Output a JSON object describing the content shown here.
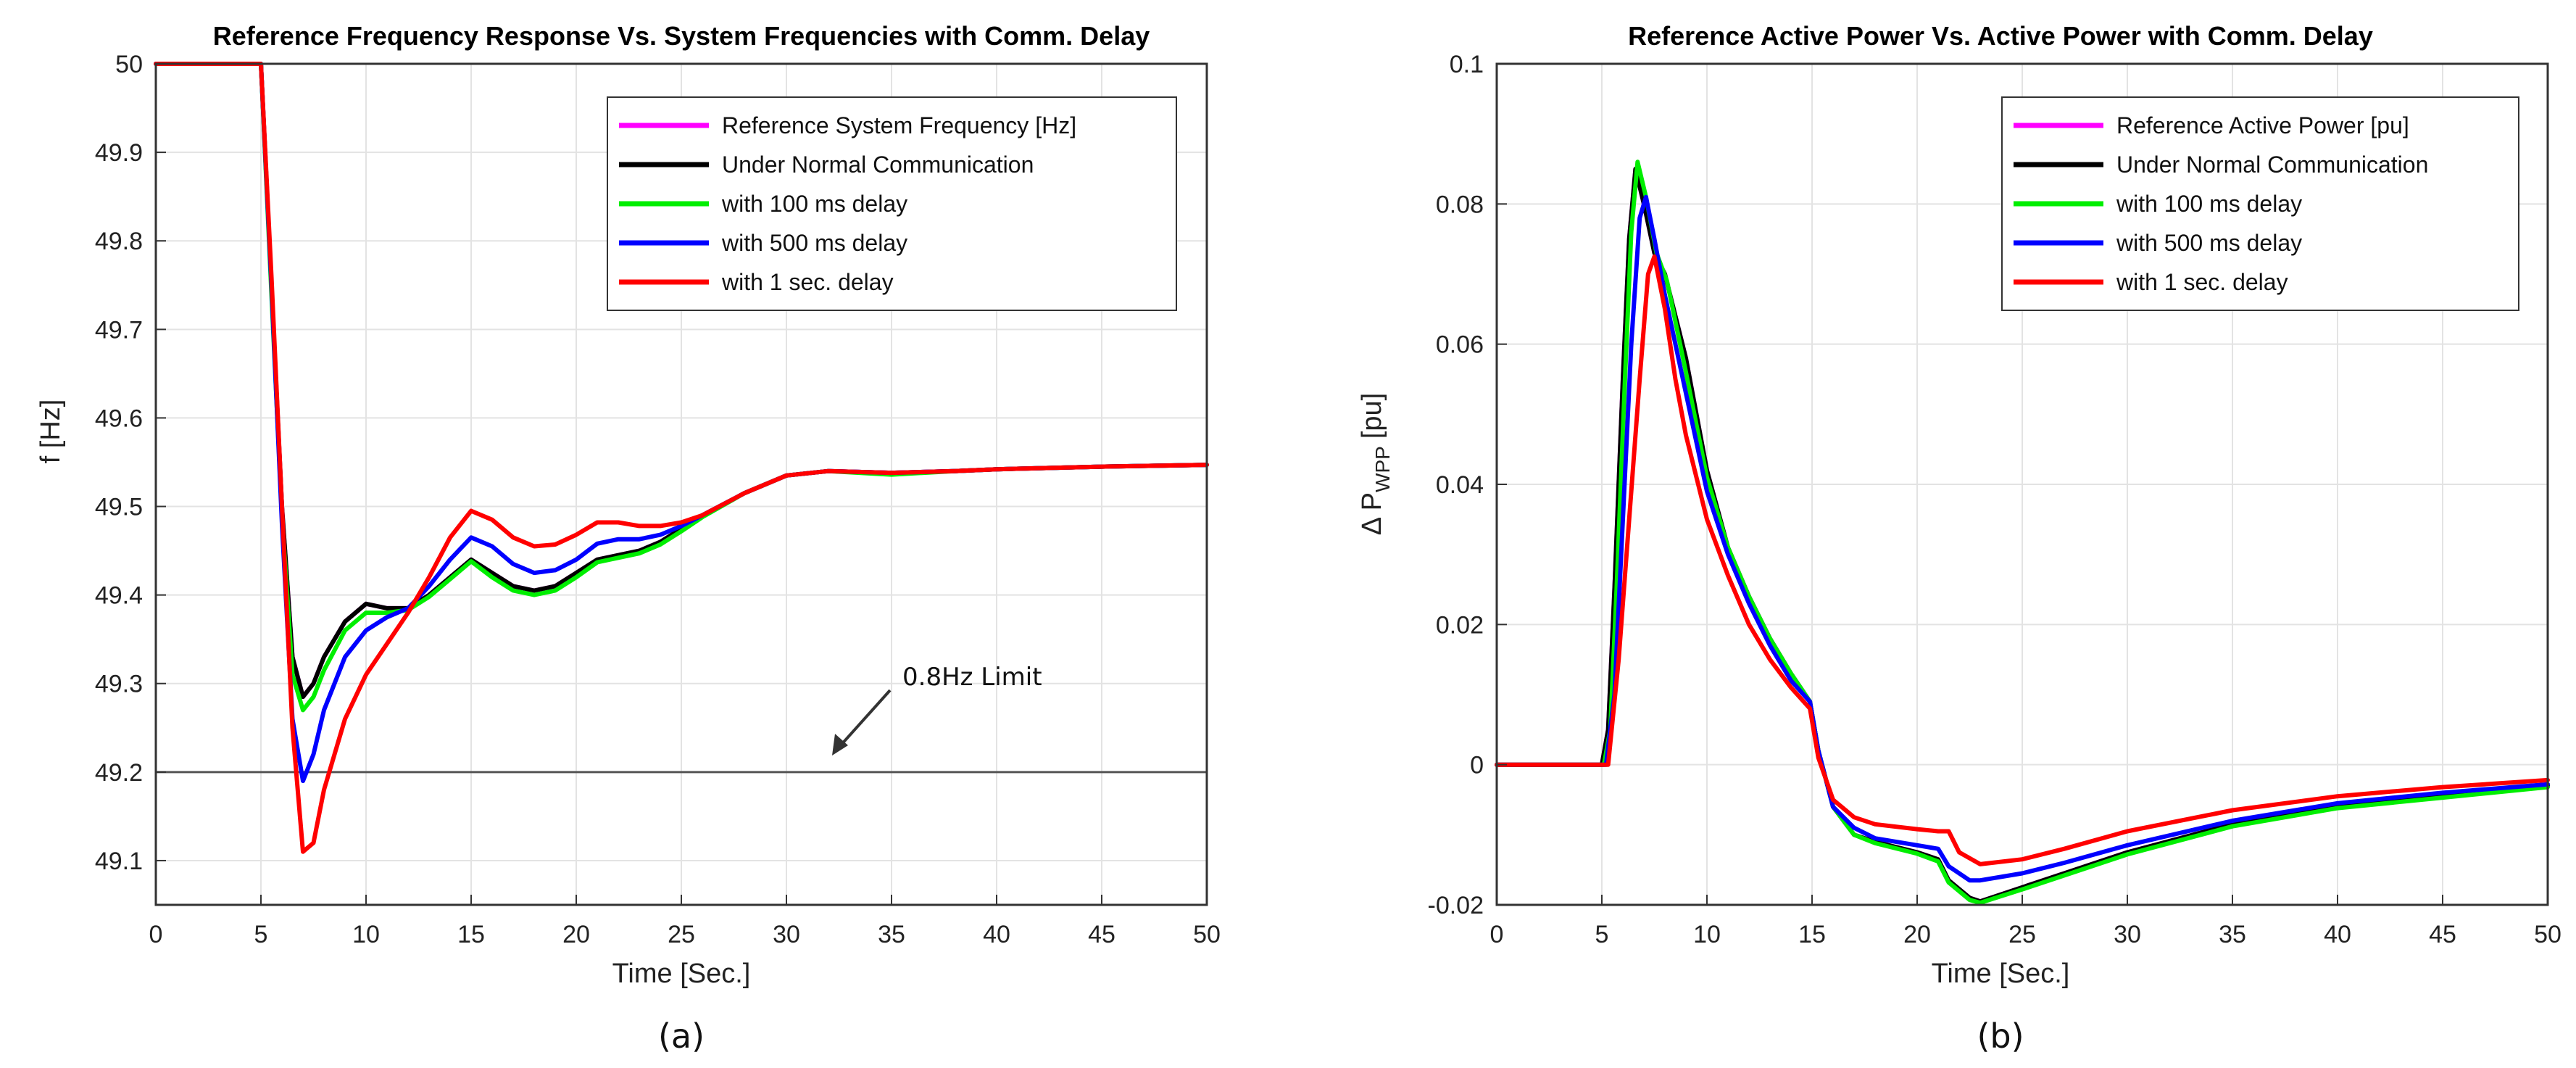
{
  "chart_data": [
    {
      "type": "line",
      "caption": "(a)",
      "title": "Reference Frequency Response Vs. System Frequencies with Comm. Delay",
      "xlabel": "Time [Sec.]",
      "ylabel": "f [Hz]",
      "xlim": [
        0,
        50
      ],
      "ylim": [
        49.05,
        50
      ],
      "xticks": [
        0,
        5,
        10,
        15,
        20,
        25,
        30,
        35,
        40,
        45,
        50
      ],
      "yticks": [
        49.1,
        49.2,
        49.3,
        49.4,
        49.5,
        49.6,
        49.7,
        49.8,
        49.9,
        50
      ],
      "ytick_labels": [
        "49.1",
        "49.2",
        "49.3",
        "49.4",
        "49.5",
        "49.6",
        "49.7",
        "49.8",
        "49.9",
        "50"
      ],
      "grid": true,
      "legend_position": "top-right",
      "annotation": {
        "text": "0.8Hz Limit",
        "target_x": 32.5,
        "target_y": 49.2
      },
      "hline": {
        "y": 49.2,
        "color": "#555555"
      },
      "series": [
        {
          "name": "Reference System Frequency [Hz]",
          "color": "#ff00ff",
          "x": [
            0,
            5,
            5.5,
            6,
            6.5,
            7,
            7.5,
            8,
            9,
            10,
            11,
            12,
            13,
            14,
            15,
            16,
            17,
            18,
            19,
            20,
            21,
            22,
            23,
            24,
            25,
            26,
            28,
            30,
            32,
            35,
            38,
            40,
            45,
            50
          ],
          "y": [
            50,
            50,
            49.75,
            49.5,
            49.33,
            49.285,
            49.3,
            49.33,
            49.37,
            49.39,
            49.385,
            49.385,
            49.4,
            49.42,
            49.44,
            49.425,
            49.41,
            49.405,
            49.41,
            49.425,
            49.44,
            49.445,
            49.45,
            49.46,
            49.475,
            49.49,
            49.515,
            49.535,
            49.54,
            49.538,
            49.54,
            49.542,
            49.545,
            49.547
          ]
        },
        {
          "name": "Under Normal Communication",
          "color": "#000000",
          "x": [
            0,
            5,
            5.5,
            6,
            6.5,
            7,
            7.5,
            8,
            9,
            10,
            11,
            12,
            13,
            14,
            15,
            16,
            17,
            18,
            19,
            20,
            21,
            22,
            23,
            24,
            25,
            26,
            28,
            30,
            32,
            35,
            38,
            40,
            45,
            50
          ],
          "y": [
            50,
            50,
            49.75,
            49.5,
            49.33,
            49.285,
            49.3,
            49.33,
            49.37,
            49.39,
            49.385,
            49.385,
            49.4,
            49.42,
            49.44,
            49.425,
            49.41,
            49.405,
            49.41,
            49.425,
            49.44,
            49.445,
            49.45,
            49.46,
            49.475,
            49.49,
            49.515,
            49.535,
            49.54,
            49.538,
            49.54,
            49.542,
            49.545,
            49.547
          ]
        },
        {
          "name": "with 100 ms delay",
          "color": "#00ee00",
          "x": [
            0,
            5,
            5.5,
            6,
            6.5,
            7,
            7.5,
            8,
            9,
            10,
            11,
            12,
            13,
            14,
            15,
            16,
            17,
            18,
            19,
            20,
            21,
            22,
            23,
            24,
            25,
            26,
            28,
            30,
            32,
            35,
            38,
            40,
            45,
            50
          ],
          "y": [
            50,
            50,
            49.74,
            49.49,
            49.31,
            49.27,
            49.285,
            49.315,
            49.36,
            49.38,
            49.38,
            49.383,
            49.398,
            49.418,
            49.438,
            49.42,
            49.405,
            49.4,
            49.405,
            49.42,
            49.437,
            49.442,
            49.447,
            49.457,
            49.472,
            49.488,
            49.515,
            49.535,
            49.54,
            49.536,
            49.54,
            49.542,
            49.545,
            49.547
          ]
        },
        {
          "name": "with 500 ms delay",
          "color": "#0000ff",
          "x": [
            0,
            5,
            5.5,
            6,
            6.5,
            7,
            7.5,
            8,
            9,
            10,
            11,
            12,
            13,
            14,
            15,
            16,
            17,
            18,
            19,
            20,
            21,
            22,
            23,
            24,
            25,
            26,
            28,
            30,
            32,
            35,
            38,
            40,
            45,
            50
          ],
          "y": [
            50,
            50,
            49.75,
            49.48,
            49.26,
            49.19,
            49.22,
            49.27,
            49.33,
            49.36,
            49.375,
            49.385,
            49.41,
            49.44,
            49.465,
            49.455,
            49.435,
            49.425,
            49.428,
            49.44,
            49.458,
            49.463,
            49.463,
            49.468,
            49.478,
            49.49,
            49.515,
            49.535,
            49.54,
            49.538,
            49.54,
            49.542,
            49.545,
            49.547
          ]
        },
        {
          "name": "with 1 sec. delay",
          "color": "#ff0000",
          "x": [
            0,
            5,
            5.5,
            6,
            6.5,
            7,
            7.5,
            8,
            9,
            10,
            11,
            12,
            13,
            14,
            15,
            16,
            17,
            18,
            19,
            20,
            21,
            22,
            23,
            24,
            25,
            26,
            28,
            30,
            32,
            35,
            38,
            40,
            45,
            50
          ],
          "y": [
            50,
            50,
            49.76,
            49.5,
            49.25,
            49.11,
            49.12,
            49.18,
            49.26,
            49.31,
            49.345,
            49.38,
            49.42,
            49.465,
            49.495,
            49.485,
            49.465,
            49.455,
            49.457,
            49.468,
            49.482,
            49.482,
            49.478,
            49.478,
            49.482,
            49.49,
            49.515,
            49.535,
            49.54,
            49.538,
            49.54,
            49.542,
            49.545,
            49.547
          ]
        }
      ]
    },
    {
      "type": "line",
      "caption": "(b)",
      "title": "Reference Active Power Vs. Active Power with Comm. Delay",
      "xlabel": "Time [Sec.]",
      "ylabel": "Δ P",
      "ylabel_sub": "WPP",
      "ylabel_tail": "[pu]",
      "xlim": [
        0,
        50
      ],
      "ylim": [
        -0.02,
        0.1
      ],
      "xticks": [
        0,
        5,
        10,
        15,
        20,
        25,
        30,
        35,
        40,
        45,
        50
      ],
      "yticks": [
        -0.02,
        0,
        0.02,
        0.04,
        0.06,
        0.08,
        0.1
      ],
      "ytick_labels": [
        "-0.02",
        "0",
        "0.02",
        "0.04",
        "0.06",
        "0.08",
        "0.1"
      ],
      "grid": true,
      "legend_position": "top-right",
      "series": [
        {
          "name": "Reference Active Power [pu]",
          "color": "#ff00ff",
          "x": [
            0,
            5,
            5.3,
            5.6,
            6,
            6.3,
            6.6,
            7,
            7.5,
            8,
            9,
            10,
            11,
            12,
            13,
            14,
            14.9,
            15.3,
            16,
            17,
            18,
            20,
            21,
            21.5,
            22.5,
            23,
            25,
            27,
            30,
            35,
            40,
            45,
            50
          ],
          "y": [
            0,
            0,
            0.005,
            0.025,
            0.055,
            0.075,
            0.085,
            0.08,
            0.073,
            0.07,
            0.058,
            0.042,
            0.031,
            0.024,
            0.018,
            0.013,
            0.009,
            0.002,
            -0.006,
            -0.01,
            -0.011,
            -0.0125,
            -0.0135,
            -0.0165,
            -0.019,
            -0.0195,
            -0.0175,
            -0.0155,
            -0.0125,
            -0.0085,
            -0.006,
            -0.0045,
            -0.003
          ]
        },
        {
          "name": "Under Normal Communication",
          "color": "#000000",
          "x": [
            0,
            5,
            5.3,
            5.6,
            6,
            6.3,
            6.6,
            7,
            7.5,
            8,
            9,
            10,
            11,
            12,
            13,
            14,
            14.9,
            15.3,
            16,
            17,
            18,
            20,
            21,
            21.5,
            22.5,
            23,
            25,
            27,
            30,
            35,
            40,
            45,
            50
          ],
          "y": [
            0,
            0,
            0.005,
            0.025,
            0.055,
            0.075,
            0.085,
            0.08,
            0.073,
            0.07,
            0.058,
            0.042,
            0.031,
            0.024,
            0.018,
            0.013,
            0.009,
            0.002,
            -0.006,
            -0.01,
            -0.011,
            -0.0125,
            -0.0135,
            -0.0165,
            -0.019,
            -0.0195,
            -0.0175,
            -0.0155,
            -0.0125,
            -0.0085,
            -0.006,
            -0.0045,
            -0.003
          ]
        },
        {
          "name": "with 100 ms delay",
          "color": "#00ee00",
          "x": [
            0,
            5.1,
            5.4,
            5.7,
            6.1,
            6.4,
            6.7,
            7.1,
            7.6,
            8.1,
            9,
            10,
            11,
            12,
            13,
            14,
            14.9,
            15.3,
            16,
            17,
            18,
            20,
            21,
            21.5,
            22.5,
            23,
            25,
            27,
            30,
            35,
            40,
            45,
            50
          ],
          "y": [
            0,
            0,
            0.005,
            0.025,
            0.055,
            0.076,
            0.086,
            0.081,
            0.073,
            0.069,
            0.056,
            0.041,
            0.031,
            0.024,
            0.018,
            0.013,
            0.009,
            0.002,
            -0.006,
            -0.01,
            -0.0112,
            -0.0127,
            -0.0138,
            -0.0168,
            -0.0193,
            -0.0197,
            -0.0178,
            -0.0158,
            -0.0128,
            -0.0088,
            -0.0062,
            -0.0047,
            -0.0032
          ]
        },
        {
          "name": "with 500 ms delay",
          "color": "#0000ff",
          "x": [
            0,
            5.2,
            5.6,
            6,
            6.4,
            6.8,
            7.1,
            7.5,
            8,
            9,
            10,
            11,
            12,
            13,
            14,
            14.9,
            15.3,
            16,
            17,
            18,
            20,
            21,
            21.5,
            22.5,
            23,
            25,
            27,
            30,
            35,
            40,
            45,
            50
          ],
          "y": [
            0,
            0,
            0.01,
            0.035,
            0.06,
            0.078,
            0.081,
            0.075,
            0.067,
            0.053,
            0.039,
            0.03,
            0.023,
            0.017,
            0.012,
            0.009,
            0.002,
            -0.006,
            -0.009,
            -0.0105,
            -0.0115,
            -0.012,
            -0.0145,
            -0.0165,
            -0.0165,
            -0.0155,
            -0.014,
            -0.0115,
            -0.008,
            -0.0055,
            -0.004,
            -0.0028
          ]
        },
        {
          "name": "with 1 sec. delay",
          "color": "#ff0000",
          "x": [
            0,
            5.3,
            5.8,
            6.3,
            6.8,
            7.2,
            7.5,
            8,
            8.5,
            9,
            10,
            11,
            12,
            13,
            14,
            14.9,
            15.3,
            16,
            17,
            18,
            20,
            21,
            21.5,
            22,
            23,
            25,
            27,
            30,
            35,
            40,
            45,
            50
          ],
          "y": [
            0,
            0,
            0.015,
            0.035,
            0.055,
            0.07,
            0.0725,
            0.065,
            0.055,
            0.047,
            0.035,
            0.027,
            0.02,
            0.015,
            0.011,
            0.008,
            0.001,
            -0.005,
            -0.0075,
            -0.0085,
            -0.0092,
            -0.0095,
            -0.0095,
            -0.0125,
            -0.0142,
            -0.0135,
            -0.012,
            -0.0095,
            -0.0065,
            -0.0045,
            -0.0032,
            -0.0022
          ]
        }
      ]
    }
  ]
}
